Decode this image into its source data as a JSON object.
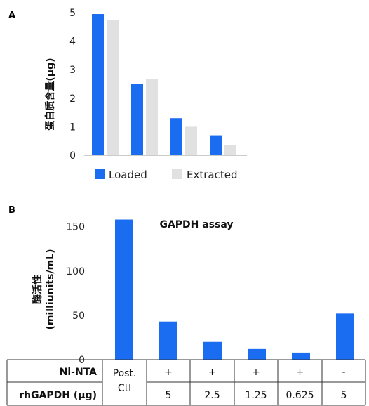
{
  "colors": {
    "loaded": "#1a6cf0",
    "extracted": "#e1e1e1",
    "bar_b": "#1a6cf0",
    "axis": "#999999",
    "table_border": "#333333"
  },
  "chart_data": [
    {
      "type": "bar",
      "panel": "A",
      "ylabel": "蛋白质含量(μg)",
      "ylim": [
        0,
        5
      ],
      "yticks": [
        "0",
        "1",
        "2",
        "3",
        "4",
        "5"
      ],
      "categories": [
        "",
        "",
        "",
        ""
      ],
      "series": [
        {
          "name": "Loaded",
          "values": [
            4.95,
            2.5,
            1.3,
            0.7
          ]
        },
        {
          "name": "Extracted",
          "values": [
            4.75,
            2.68,
            1.0,
            0.35
          ]
        }
      ],
      "legend": "bottom"
    },
    {
      "type": "bar",
      "panel": "B",
      "title": "GAPDH assay",
      "ylabel_line1": "酶活性",
      "ylabel_line2": "(milliunits/mL)",
      "ylim": [
        0,
        160
      ],
      "yticks": [
        "0",
        "50",
        "100",
        "150"
      ],
      "values": [
        158,
        43,
        20,
        12,
        8,
        52
      ],
      "table": {
        "row1_label": "Ni-NTA",
        "row2_label": "rhGAPDH (μg)",
        "first_col_line1": "Post.",
        "first_col_line2": "Ctl",
        "row1_values": [
          "+",
          "+",
          "+",
          "+",
          "-"
        ],
        "row2_values": [
          "5",
          "2.5",
          "1.25",
          "0.625",
          "5"
        ]
      }
    }
  ]
}
